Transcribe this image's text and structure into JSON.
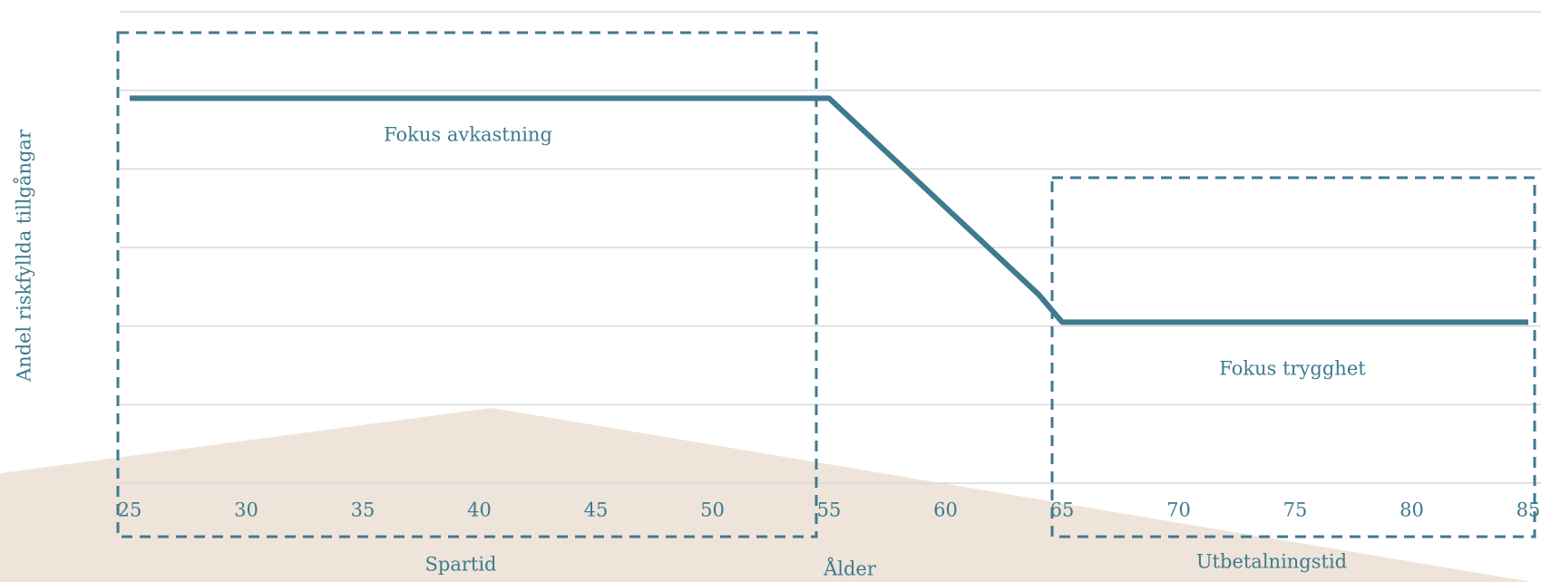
{
  "chart_data": {
    "type": "line",
    "y_axis_label": "Andel riskfyllda tillgångar",
    "x_axis_label": "Ålder",
    "annotations": [
      "Fokus avkastning",
      "Fokus trygghet",
      "Spartid",
      "Utbetalningstid"
    ],
    "x": [
      25,
      55,
      64,
      65,
      85
    ],
    "series": [
      {
        "color": "#3f7a8f",
        "values": [
          4.9,
          4.9,
          2.4,
          2.05,
          2.05
        ]
      }
    ],
    "xlim": [
      25,
      85
    ],
    "xticks": [
      25,
      30,
      35,
      40,
      45,
      50,
      55,
      60,
      65,
      70,
      75,
      80,
      85
    ],
    "ylim": [
      0,
      6
    ],
    "yticks": [
      0,
      1,
      2,
      3,
      4,
      5,
      6
    ],
    "ytick_labels": false,
    "grid": true
  }
}
